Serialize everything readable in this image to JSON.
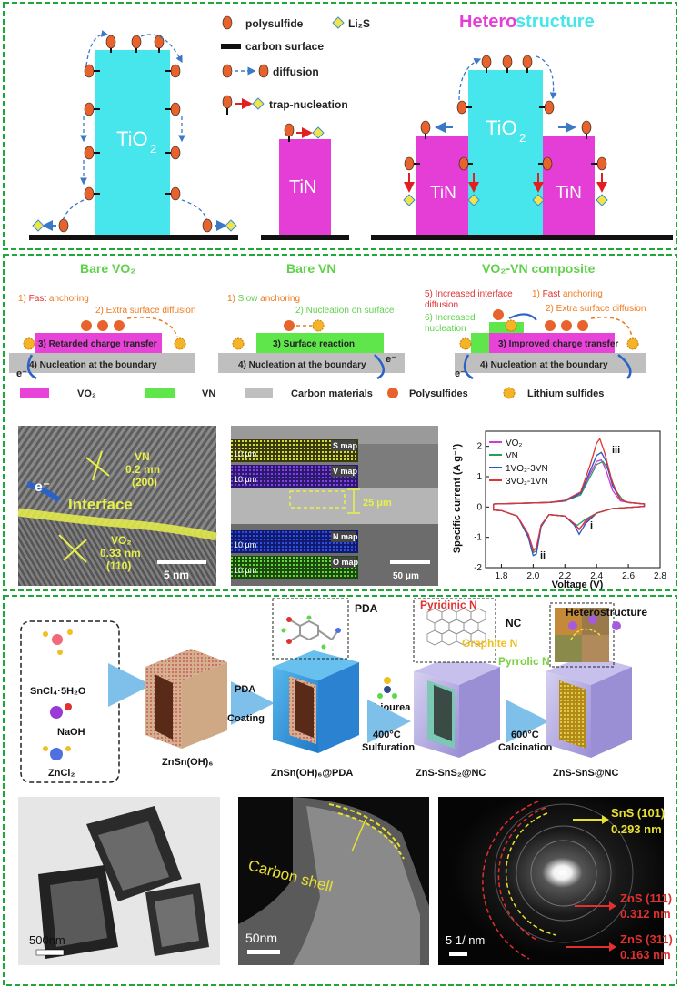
{
  "colors": {
    "frame": "#1fa83a",
    "tio2": "#46e6ec",
    "tin": "#e43ed7",
    "vo2": "#e843d8",
    "vn": "#5ee64b",
    "carbon": "#bfbfbf",
    "polysulfide": "#e8622c",
    "li2s": "#f3e34a",
    "trap_arrow": "#e02020",
    "diffusion_arrow": "#3a78c8",
    "orange_text": "#ee7a1e",
    "green_text": "#5fd14a",
    "red_text": "#e03030",
    "blue_electron": "#2a62c8"
  },
  "panel1": {
    "legend": {
      "polysulfide": "polysulfide",
      "li2s": "Li₂S",
      "carbon": "carbon surface",
      "diffusion": "diffusion",
      "trap": "trap-nucleation"
    },
    "tio2_label": "TiO",
    "tio2_sub": "2",
    "tin_label": "TiN",
    "hetero_title_a": "Hetero",
    "hetero_title_b": "structure",
    "hetero_tio2": "TiO",
    "hetero_tio2_sub": "2",
    "hetero_tin_left": "TiN",
    "hetero_tin_right": "TiN"
  },
  "panel2": {
    "titles": {
      "bare_vo2": "Bare VO₂",
      "bare_vn": "Bare VN",
      "composite": "VO₂-VN composite"
    },
    "vo2": {
      "s1a": "1) ",
      "s1b": "Fast",
      "s1c": " anchoring",
      "s2": "2) Extra surface diffusion",
      "s3": "3) Retarded charge transfer",
      "s4": "4) Nucleation at the boundary"
    },
    "vn": {
      "s1a": "1) ",
      "s1b": "Slow",
      "s1c": " anchoring",
      "s2": "2) Nucleation on surface",
      "s3": "3) Surface reaction",
      "s4": "4) Nucleation at the boundary"
    },
    "comp": {
      "s5a": "5) Increased interface",
      "s5b": "diffusion",
      "s6a": "6) Increased",
      "s6b": "nucleation",
      "s1a": "1) ",
      "s1b": "Fast",
      "s1c": " anchoring",
      "s2": "2) Extra surface diffusion",
      "s3": "3) Improved charge transfer",
      "s4": "4) Nucleation at the boundary"
    },
    "electron": "e⁻",
    "legend": {
      "vo2": "VO₂",
      "vn": "VN",
      "carbon": "Carbon materials",
      "poly": "Polysulfides",
      "lis": "Lithium sulfides"
    },
    "tem": {
      "vn_a": "VN",
      "vn_b": "0.2 nm",
      "vn_c": "(200)",
      "interface": "Interface",
      "vo2_a": "VO₂",
      "vo2_b": "0.33 nm",
      "vo2_c": "(110)",
      "scale": "5 nm",
      "electron": "e⁻"
    },
    "maps": {
      "s": "S map",
      "v": "V map",
      "n": "N map",
      "o": "O map",
      "scale_small": "10 μm",
      "thickness": "25 μm",
      "scale": "50 μm"
    }
  },
  "chart_data": {
    "type": "line",
    "xlabel": "Voltage (V)",
    "ylabel": "Specific current (A g⁻¹)",
    "xlim": [
      1.7,
      2.8
    ],
    "ylim": [
      -2.0,
      2.5
    ],
    "xticks": [
      "1.8",
      "2.0",
      "2.2",
      "2.4",
      "2.6",
      "2.8"
    ],
    "yticks": [
      "-2",
      "-1",
      "0",
      "1",
      "2"
    ],
    "legend_position": "top-left",
    "annotations": [
      "i",
      "ii",
      "iii"
    ],
    "series": [
      {
        "name": "VO₂",
        "color": "#d13ad6",
        "upper": [
          [
            1.75,
            0.1
          ],
          [
            1.9,
            0.12
          ],
          [
            2.1,
            0.15
          ],
          [
            2.2,
            0.22
          ],
          [
            2.3,
            0.45
          ],
          [
            2.36,
            1.1
          ],
          [
            2.4,
            1.5
          ],
          [
            2.43,
            1.55
          ],
          [
            2.46,
            1.2
          ],
          [
            2.5,
            0.55
          ],
          [
            2.55,
            0.2
          ],
          [
            2.6,
            0.15
          ],
          [
            2.7,
            0.1
          ]
        ],
        "lower": [
          [
            2.7,
            0.02
          ],
          [
            2.5,
            -0.05
          ],
          [
            2.4,
            -0.2
          ],
          [
            2.33,
            -0.5
          ],
          [
            2.29,
            -0.72
          ],
          [
            2.26,
            -0.55
          ],
          [
            2.2,
            -0.3
          ],
          [
            2.1,
            -0.25
          ],
          [
            2.05,
            -0.6
          ],
          [
            2.02,
            -1.35
          ],
          [
            2.0,
            -1.4
          ],
          [
            1.97,
            -0.9
          ],
          [
            1.9,
            -0.3
          ],
          [
            1.8,
            -0.12
          ],
          [
            1.75,
            -0.1
          ]
        ]
      },
      {
        "name": "VN",
        "color": "#2e9b5e",
        "upper": [
          [
            1.75,
            0.1
          ],
          [
            1.9,
            0.12
          ],
          [
            2.1,
            0.15
          ],
          [
            2.2,
            0.2
          ],
          [
            2.3,
            0.4
          ],
          [
            2.36,
            1.0
          ],
          [
            2.4,
            1.4
          ],
          [
            2.44,
            1.5
          ],
          [
            2.47,
            1.25
          ],
          [
            2.52,
            0.55
          ],
          [
            2.57,
            0.2
          ],
          [
            2.6,
            0.15
          ],
          [
            2.7,
            0.1
          ]
        ],
        "lower": [
          [
            2.7,
            0.02
          ],
          [
            2.5,
            -0.05
          ],
          [
            2.4,
            -0.2
          ],
          [
            2.33,
            -0.4
          ],
          [
            2.28,
            -0.6
          ],
          [
            2.24,
            -0.5
          ],
          [
            2.2,
            -0.3
          ],
          [
            2.1,
            -0.25
          ],
          [
            2.05,
            -0.6
          ],
          [
            2.02,
            -1.45
          ],
          [
            2.0,
            -1.5
          ],
          [
            1.97,
            -0.95
          ],
          [
            1.9,
            -0.3
          ],
          [
            1.8,
            -0.12
          ],
          [
            1.75,
            -0.1
          ]
        ]
      },
      {
        "name": "1VO₂-3VN",
        "color": "#2a55c2",
        "upper": [
          [
            1.75,
            0.1
          ],
          [
            1.9,
            0.12
          ],
          [
            2.1,
            0.15
          ],
          [
            2.2,
            0.2
          ],
          [
            2.3,
            0.45
          ],
          [
            2.36,
            1.2
          ],
          [
            2.4,
            1.7
          ],
          [
            2.43,
            1.8
          ],
          [
            2.46,
            1.5
          ],
          [
            2.5,
            0.7
          ],
          [
            2.55,
            0.25
          ],
          [
            2.6,
            0.15
          ],
          [
            2.7,
            0.1
          ]
        ],
        "lower": [
          [
            2.7,
            0.02
          ],
          [
            2.5,
            -0.05
          ],
          [
            2.4,
            -0.2
          ],
          [
            2.33,
            -0.55
          ],
          [
            2.29,
            -0.9
          ],
          [
            2.26,
            -0.6
          ],
          [
            2.2,
            -0.3
          ],
          [
            2.1,
            -0.25
          ],
          [
            2.05,
            -0.65
          ],
          [
            2.02,
            -1.55
          ],
          [
            2.0,
            -1.6
          ],
          [
            1.97,
            -1.0
          ],
          [
            1.9,
            -0.3
          ],
          [
            1.8,
            -0.12
          ],
          [
            1.75,
            -0.1
          ]
        ]
      },
      {
        "name": "3VO₂-1VN",
        "color": "#e03333",
        "upper": [
          [
            1.75,
            0.1
          ],
          [
            1.9,
            0.12
          ],
          [
            2.1,
            0.15
          ],
          [
            2.2,
            0.22
          ],
          [
            2.3,
            0.5
          ],
          [
            2.36,
            1.4
          ],
          [
            2.4,
            2.1
          ],
          [
            2.42,
            2.25
          ],
          [
            2.45,
            1.8
          ],
          [
            2.5,
            0.8
          ],
          [
            2.55,
            0.25
          ],
          [
            2.6,
            0.15
          ],
          [
            2.7,
            0.1
          ]
        ],
        "lower": [
          [
            2.7,
            0.02
          ],
          [
            2.5,
            -0.05
          ],
          [
            2.4,
            -0.2
          ],
          [
            2.33,
            -0.45
          ],
          [
            2.29,
            -0.75
          ],
          [
            2.26,
            -0.55
          ],
          [
            2.2,
            -0.3
          ],
          [
            2.1,
            -0.25
          ],
          [
            2.05,
            -0.6
          ],
          [
            2.02,
            -1.35
          ],
          [
            2.0,
            -1.45
          ],
          [
            1.97,
            -0.9
          ],
          [
            1.9,
            -0.3
          ],
          [
            1.8,
            -0.12
          ],
          [
            1.75,
            -0.1
          ]
        ]
      }
    ]
  },
  "panel3": {
    "reagents": {
      "a": "SnCl₄·5H₂O",
      "b": "NaOH",
      "c": "ZnCl₂"
    },
    "steps": {
      "pda": "PDA",
      "coating": "Coating",
      "thiourea": "thiourea",
      "t400": "400°C",
      "sulfuration": "Sulfuration",
      "t600": "600°C",
      "calcination": "Calcination"
    },
    "products": {
      "p1": "ZnSn(OH)₆",
      "p2": "ZnSn(OH)₆@PDA",
      "p3": "ZnS-SnS₂@NC",
      "p4": "ZnS-SnS@NC"
    },
    "insets": {
      "pda": "PDA",
      "pyridinic": "Pyridinic N",
      "nc": "NC",
      "graphite": "Graphite N",
      "pyrrolic": "Pyrrolic N",
      "hetero": "Heterostructure"
    },
    "tem1_scale": "500nm",
    "tem2": {
      "shell": "Carbon shell",
      "scale": "50nm"
    },
    "saed": {
      "a1": "SnS (101)",
      "a2": "0.293 nm",
      "b1": "ZnS (111)",
      "b2": "0.312 nm",
      "c1": "ZnS (311)",
      "c2": "0.163 nm",
      "scale": "5 1/ nm"
    }
  }
}
